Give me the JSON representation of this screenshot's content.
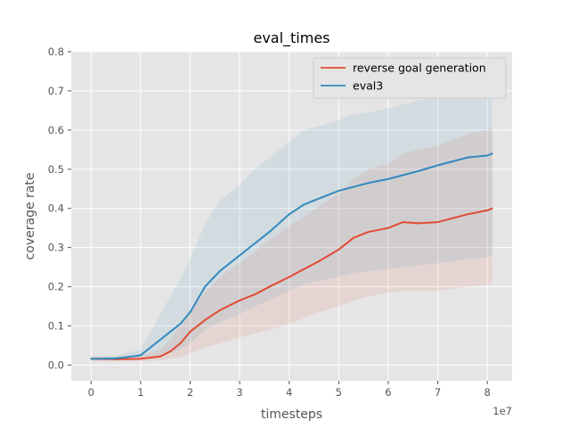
{
  "chart_data": {
    "type": "line",
    "title": "eval_times",
    "xlabel": "timesteps",
    "ylabel": "coverage rate",
    "x_offset_text": "1e7",
    "xlim": [
      -0.4,
      8.5
    ],
    "ylim": [
      -0.04,
      0.8
    ],
    "x_ticks": [
      0,
      1,
      2,
      3,
      4,
      5,
      6,
      7,
      8
    ],
    "y_ticks": [
      0.0,
      0.1,
      0.2,
      0.3,
      0.4,
      0.5,
      0.6,
      0.7,
      0.8
    ],
    "x_tick_labels": [
      "0",
      "1",
      "2",
      "3",
      "4",
      "5",
      "6",
      "7",
      "8"
    ],
    "y_tick_labels": [
      "0.0",
      "0.1",
      "0.2",
      "0.3",
      "0.4",
      "0.5",
      "0.6",
      "0.7",
      "0.8"
    ],
    "grid": true,
    "background": "#e5e5e5",
    "legend_position": "top-right",
    "series": [
      {
        "name": "reverse goal generation",
        "color": "#e24a33",
        "x": [
          0.0,
          0.5,
          1.0,
          1.4,
          1.6,
          1.8,
          2.0,
          2.3,
          2.6,
          3.0,
          3.3,
          3.6,
          4.0,
          4.3,
          4.6,
          5.0,
          5.3,
          5.6,
          6.0,
          6.3,
          6.6,
          7.0,
          7.3,
          7.6,
          8.0,
          8.1
        ],
        "mean": [
          0.016,
          0.015,
          0.016,
          0.022,
          0.035,
          0.055,
          0.085,
          0.115,
          0.14,
          0.165,
          0.18,
          0.2,
          0.225,
          0.245,
          0.265,
          0.295,
          0.325,
          0.34,
          0.35,
          0.365,
          0.362,
          0.365,
          0.375,
          0.385,
          0.395,
          0.4
        ],
        "lower": [
          0.01,
          0.01,
          0.01,
          0.012,
          0.016,
          0.02,
          0.03,
          0.045,
          0.055,
          0.07,
          0.08,
          0.09,
          0.105,
          0.12,
          0.135,
          0.15,
          0.165,
          0.175,
          0.185,
          0.19,
          0.19,
          0.19,
          0.195,
          0.2,
          0.205,
          0.21
        ],
        "upper": [
          0.022,
          0.022,
          0.024,
          0.04,
          0.065,
          0.1,
          0.14,
          0.185,
          0.225,
          0.26,
          0.29,
          0.32,
          0.355,
          0.38,
          0.405,
          0.44,
          0.475,
          0.5,
          0.515,
          0.54,
          0.55,
          0.56,
          0.575,
          0.59,
          0.6,
          0.605
        ]
      },
      {
        "name": "eval3",
        "color": "#348abd",
        "x": [
          0.0,
          0.5,
          1.0,
          1.2,
          1.4,
          1.6,
          1.8,
          2.0,
          2.3,
          2.6,
          3.0,
          3.3,
          3.6,
          4.0,
          4.3,
          4.6,
          5.0,
          5.3,
          5.6,
          6.0,
          6.3,
          6.6,
          7.0,
          7.3,
          7.6,
          8.0,
          8.1
        ],
        "mean": [
          0.016,
          0.017,
          0.025,
          0.045,
          0.065,
          0.085,
          0.105,
          0.135,
          0.2,
          0.24,
          0.28,
          0.31,
          0.34,
          0.385,
          0.41,
          0.425,
          0.445,
          0.455,
          0.465,
          0.475,
          0.485,
          0.495,
          0.51,
          0.52,
          0.53,
          0.535,
          0.54
        ],
        "lower": [
          0.012,
          0.012,
          0.014,
          0.018,
          0.022,
          0.03,
          0.04,
          0.055,
          0.09,
          0.11,
          0.13,
          0.15,
          0.165,
          0.19,
          0.205,
          0.215,
          0.225,
          0.235,
          0.24,
          0.245,
          0.25,
          0.255,
          0.26,
          0.265,
          0.27,
          0.275,
          0.28
        ],
        "upper": [
          0.022,
          0.024,
          0.04,
          0.085,
          0.13,
          0.175,
          0.22,
          0.27,
          0.36,
          0.42,
          0.46,
          0.5,
          0.53,
          0.57,
          0.6,
          0.61,
          0.625,
          0.64,
          0.645,
          0.655,
          0.665,
          0.675,
          0.685,
          0.69,
          0.7,
          0.705,
          0.71
        ]
      }
    ]
  }
}
